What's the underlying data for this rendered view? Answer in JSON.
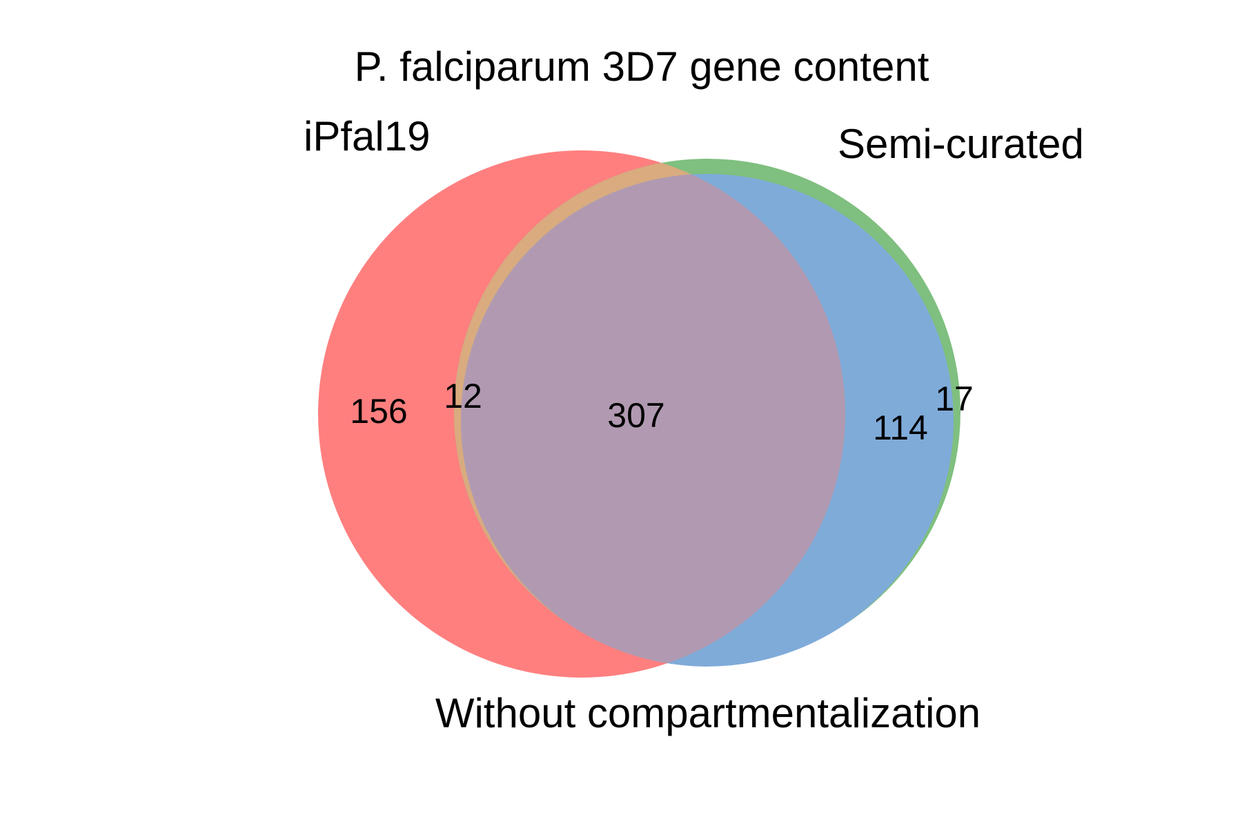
{
  "title": "P. falciparum 3D7 gene content",
  "sets": [
    {
      "id": "A",
      "label": "iPfal19",
      "color": "#ff7f7f"
    },
    {
      "id": "B",
      "label": "Semi-curated",
      "color": "#7fbf7f"
    },
    {
      "id": "C",
      "label": "Without compartmentalization",
      "color": "#7fabd9"
    }
  ],
  "regions": {
    "A_only": "156",
    "A_B_only": "12",
    "A_B_C": "307",
    "B_C_only": "114",
    "B_only": "17"
  },
  "colors": {
    "A_only": "#ff7f7f",
    "A_B_only": "#d9ab7f",
    "A_B_C": "#b19ab1",
    "B_C_only": "#7fabd9",
    "B_only": "#7fbf7f",
    "background": "#ffffff"
  }
}
